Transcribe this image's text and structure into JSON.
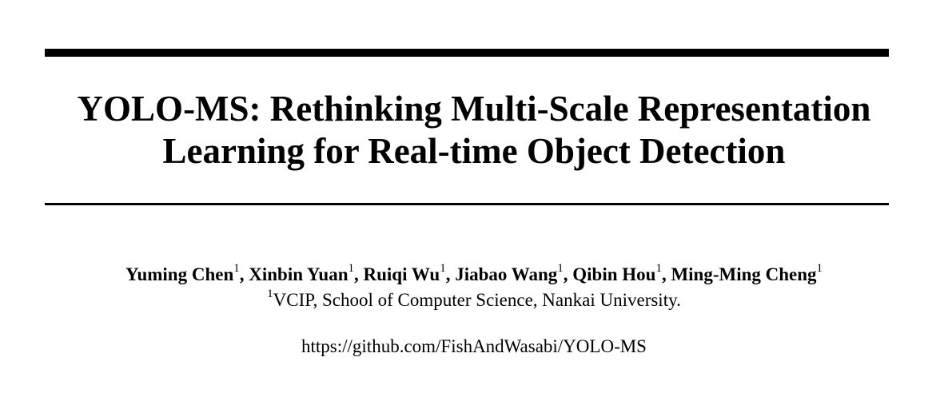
{
  "paper": {
    "title_line1": "YOLO-MS: Rethinking Multi-Scale Representation",
    "title_line2": "Learning for Real-time Object Detection",
    "authors": [
      {
        "name": "Yuming Chen",
        "affil": "1"
      },
      {
        "name": "Xinbin Yuan",
        "affil": "1"
      },
      {
        "name": "Ruiqi Wu",
        "affil": "1"
      },
      {
        "name": "Jiabao Wang",
        "affil": "1"
      },
      {
        "name": "Qibin Hou",
        "affil": "1"
      },
      {
        "name": "Ming-Ming Cheng",
        "affil": "1"
      }
    ],
    "separator": ", ",
    "affiliation": {
      "mark": "1",
      "text": "VCIP, School of Computer Science, Nankai University."
    },
    "url": "https://github.com/FishAndWasabi/YOLO-MS"
  }
}
